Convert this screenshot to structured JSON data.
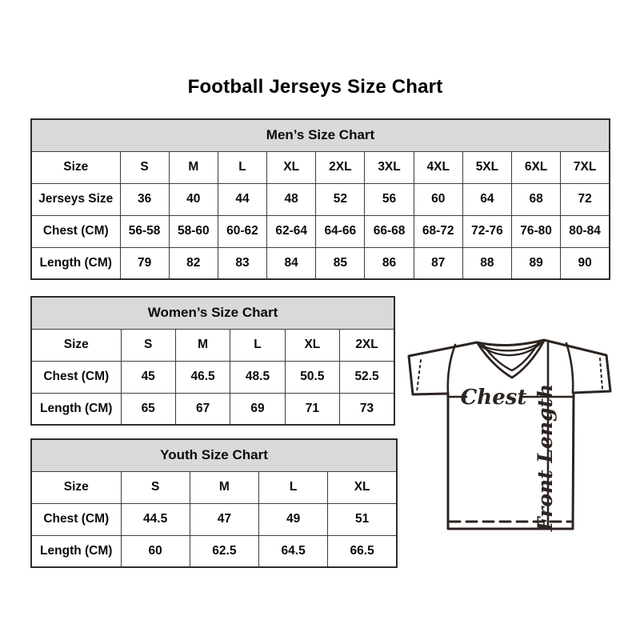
{
  "page": {
    "title": "Football Jerseys Size Chart"
  },
  "tables": {
    "mens": {
      "title": "Men’s Size Chart",
      "columns": [
        "Size",
        "S",
        "M",
        "L",
        "XL",
        "2XL",
        "3XL",
        "4XL",
        "5XL",
        "6XL",
        "7XL"
      ],
      "rows": [
        {
          "label": "Jerseys Size",
          "values": [
            "36",
            "40",
            "44",
            "48",
            "52",
            "56",
            "60",
            "64",
            "68",
            "72"
          ]
        },
        {
          "label": "Chest (CM)",
          "values": [
            "56-58",
            "58-60",
            "60-62",
            "62-64",
            "64-66",
            "66-68",
            "68-72",
            "72-76",
            "76-80",
            "80-84"
          ]
        },
        {
          "label": "Length (CM)",
          "values": [
            "79",
            "82",
            "83",
            "84",
            "85",
            "86",
            "87",
            "88",
            "89",
            "90"
          ]
        }
      ]
    },
    "womens": {
      "title": "Women’s Size Chart",
      "columns": [
        "Size",
        "S",
        "M",
        "L",
        "XL",
        "2XL"
      ],
      "rows": [
        {
          "label": "Chest (CM)",
          "values": [
            "45",
            "46.5",
            "48.5",
            "50.5",
            "52.5"
          ]
        },
        {
          "label": "Length (CM)",
          "values": [
            "65",
            "67",
            "69",
            "71",
            "73"
          ]
        }
      ]
    },
    "youth": {
      "title": "Youth Size Chart",
      "columns": [
        "Size",
        "S",
        "M",
        "L",
        "XL"
      ],
      "rows": [
        {
          "label": "Chest (CM)",
          "values": [
            "44.5",
            "47",
            "49",
            "51"
          ]
        },
        {
          "label": "Length (CM)",
          "values": [
            "60",
            "62.5",
            "64.5",
            "66.5"
          ]
        }
      ]
    }
  },
  "diagram": {
    "chest_label": "Chest",
    "front_length_label": "Front Length",
    "stroke_color": "#2c2420"
  },
  "colors": {
    "table_header_bg": "#d9d9d9",
    "table_border": "#2d2d2d",
    "text": "#0a0a0a"
  }
}
